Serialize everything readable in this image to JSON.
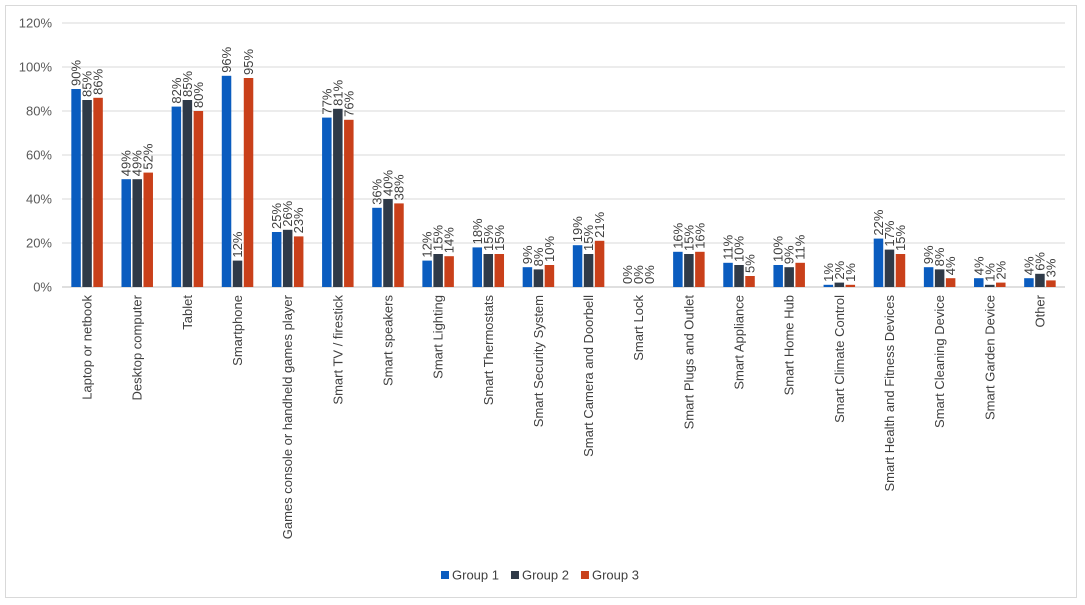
{
  "chart_data": {
    "type": "bar",
    "title": "",
    "xlabel": "",
    "ylabel": "",
    "ylim": [
      0,
      120
    ],
    "y_ticks": [
      "0%",
      "20%",
      "40%",
      "60%",
      "80%",
      "100%",
      "120%"
    ],
    "y_tick_values": [
      0,
      20,
      40,
      60,
      80,
      100,
      120
    ],
    "grid": true,
    "legend_position": "bottom",
    "categories": [
      "Laptop or netbook",
      "Desktop computer",
      "Tablet",
      "Smartphone",
      "Games console or handheld games player",
      "Smart TV / firestick",
      "Smart speakers",
      "Smart Lighting",
      "Smart Thermostats",
      "Smart Security System",
      "Smart Camera and Doorbell",
      "Smart Lock",
      "Smart Plugs and Outlet",
      "Smart Appliance",
      "Smart Home Hub",
      "Smart Climate Control",
      "Smart Health and Fitness Devices",
      "Smart Cleaning Device",
      "Smart Garden Device",
      "Other"
    ],
    "series": [
      {
        "name": "Group 1",
        "color": "#0a5cbf",
        "values": [
          90,
          49,
          82,
          96,
          25,
          77,
          36,
          12,
          18,
          9,
          19,
          0,
          16,
          11,
          10,
          1,
          22,
          9,
          4,
          4
        ],
        "labels": [
          "90%",
          "49%",
          "82%",
          "96%",
          "25%",
          "77%",
          "36%",
          "12%",
          "18%",
          "9%",
          "19%",
          "0%",
          "16%",
          "11%",
          "10%",
          "1%",
          "22%",
          "9%",
          "4%",
          "4%"
        ]
      },
      {
        "name": "Group 2",
        "color": "#2f3a48",
        "values": [
          85,
          49,
          85,
          12,
          26,
          81,
          40,
          15,
          15,
          8,
          15,
          0,
          15,
          10,
          9,
          2,
          17,
          8,
          1,
          6
        ],
        "labels": [
          "85%",
          "49%",
          "85%",
          "12%",
          "26%",
          "81%",
          "40%",
          "15%",
          "15%",
          "8%",
          "15%",
          "0%",
          "15%",
          "10%",
          "9%",
          "2%",
          "17%",
          "8%",
          "1%",
          "6%"
        ]
      },
      {
        "name": "Group 3",
        "color": "#c9401a",
        "values": [
          86,
          52,
          80,
          95,
          23,
          76,
          38,
          14,
          15,
          10,
          21,
          0,
          16,
          5,
          11,
          1,
          15,
          4,
          2,
          3
        ],
        "labels": [
          "86%",
          "52%",
          "80%",
          "95%",
          "23%",
          "76%",
          "38%",
          "14%",
          "15%",
          "10%",
          "21%",
          "0%",
          "16%",
          "5%",
          "11%",
          "1%",
          "15%",
          "4%",
          "2%",
          "3%"
        ]
      }
    ]
  }
}
